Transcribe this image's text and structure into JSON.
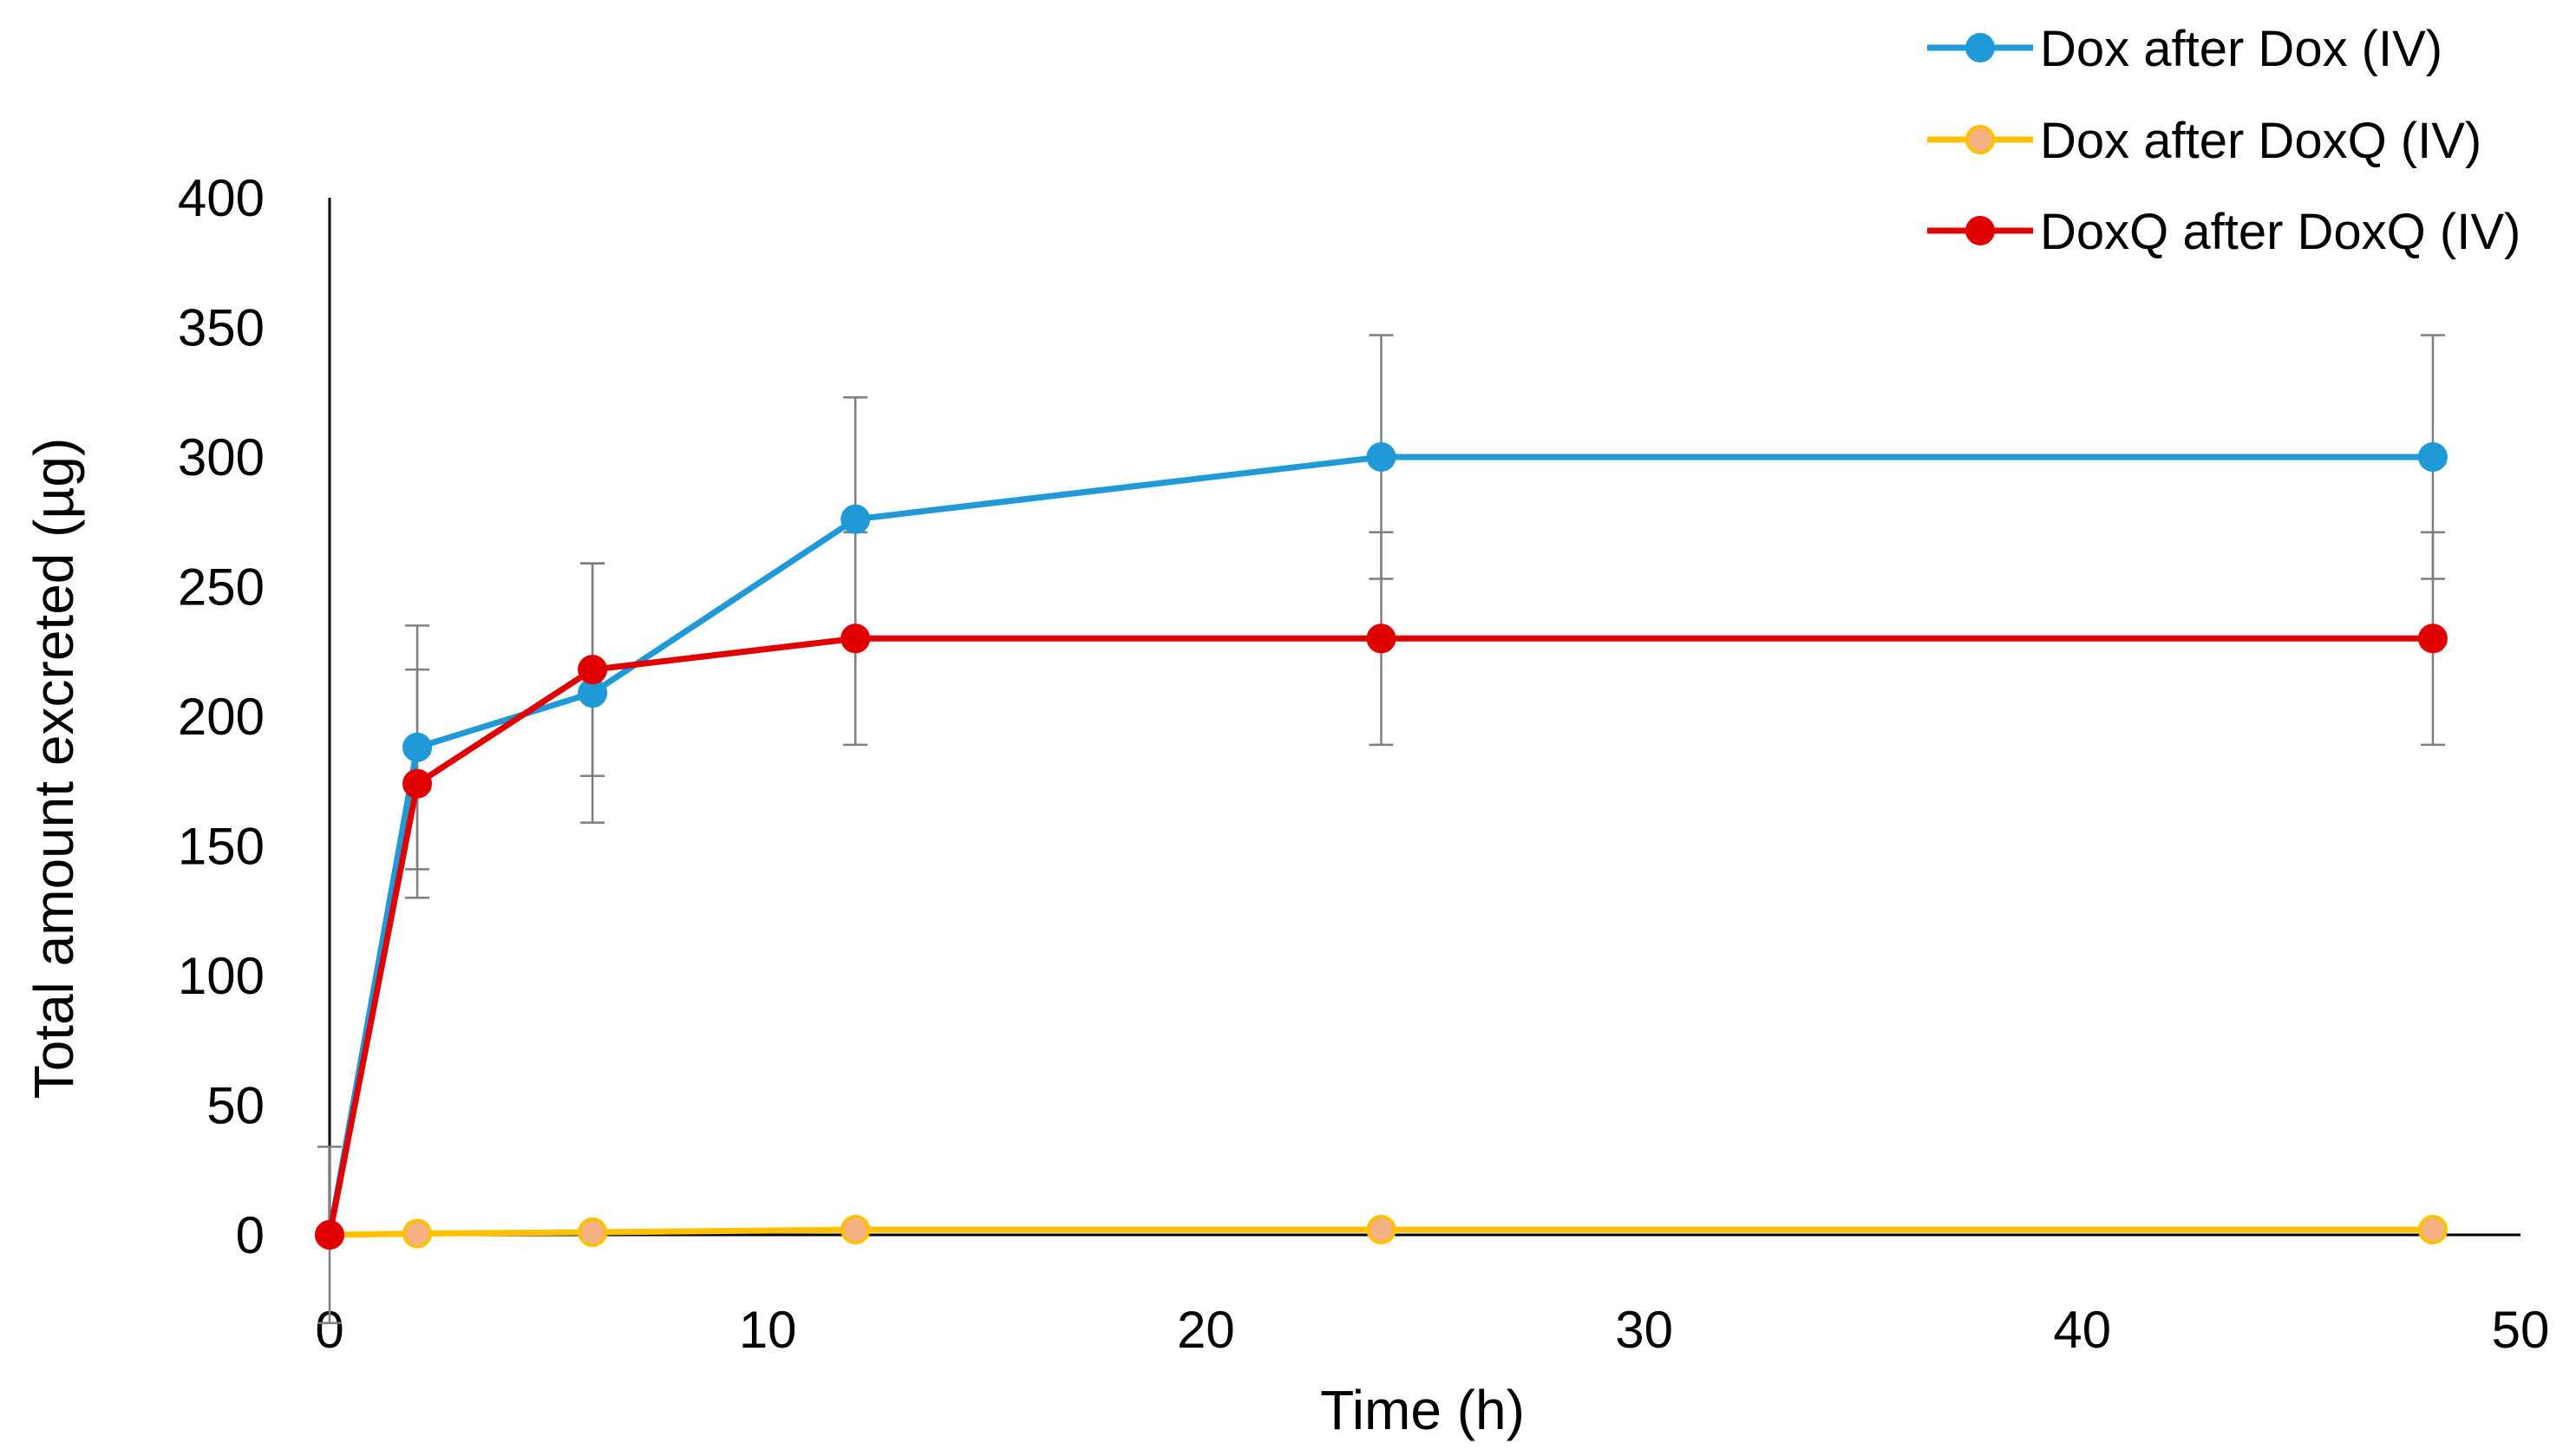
{
  "chart_data": {
    "type": "line",
    "title": "",
    "xlabel": "Time (h)",
    "ylabel": "Total  amount  excreted (µg)",
    "xlim": [
      0,
      50
    ],
    "ylim": [
      0,
      400
    ],
    "xticks": [
      0,
      10,
      20,
      30,
      40,
      50
    ],
    "yticks": [
      0,
      50,
      100,
      150,
      200,
      250,
      300,
      350,
      400
    ],
    "xtick_labels": [
      "0",
      "10",
      "20",
      "30",
      "40",
      "50"
    ],
    "ytick_labels": [
      "0",
      "50",
      "100",
      "150",
      "200",
      "250",
      "300",
      "350",
      "400"
    ],
    "grid": false,
    "legend_position": "top-right",
    "series": [
      {
        "name": "Dox after Dox (IV)",
        "color": "#1f9ad6",
        "marker_fill": "#1f9ad6",
        "x": [
          0,
          2,
          6,
          12,
          24,
          48
        ],
        "y": [
          0,
          188,
          209,
          276,
          300,
          300
        ],
        "error": [
          34,
          47,
          50,
          47,
          47,
          47
        ]
      },
      {
        "name": "Dox after DoxQ (IV)",
        "color": "#ffc000",
        "marker_fill": "#f4b183",
        "x": [
          0,
          2,
          6,
          12,
          24,
          48
        ],
        "y": [
          0,
          0.5,
          1,
          2,
          2,
          2
        ],
        "error": [
          0,
          0,
          0,
          0,
          0,
          0
        ]
      },
      {
        "name": "DoxQ after DoxQ (IV)",
        "color": "#e00000",
        "marker_fill": "#e00000",
        "x": [
          0,
          2,
          6,
          12,
          24,
          48
        ],
        "y": [
          0,
          174,
          218,
          230,
          230,
          230
        ],
        "error": [
          0,
          44,
          41,
          41,
          41,
          41
        ]
      }
    ]
  }
}
